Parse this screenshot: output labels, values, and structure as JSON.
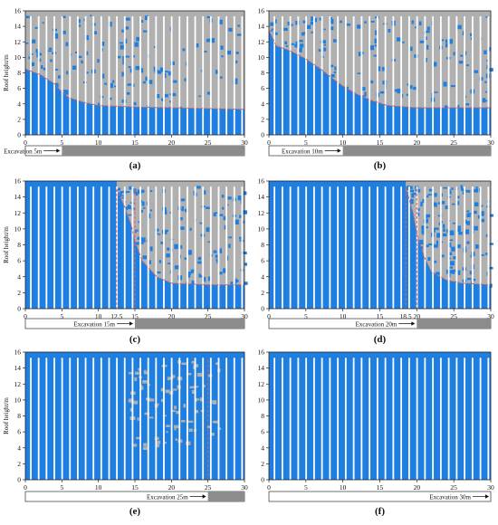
{
  "chart_data": [
    {
      "type": "bar",
      "panel": "(a)",
      "xlim": [
        0,
        30
      ],
      "ylim": [
        0,
        16
      ],
      "xticks": [
        0,
        5,
        10,
        15,
        20,
        25,
        30
      ],
      "yticks": [
        0,
        2,
        4,
        6,
        8,
        10,
        12,
        14,
        16
      ],
      "ylabel": "Roof height/m",
      "excavation_label": "Excavation 5m",
      "excavation_m": 5,
      "dashed_marks": [],
      "collapse_curve": {
        "x": [
          0,
          2,
          4,
          5,
          6,
          8,
          10,
          15,
          20,
          25,
          30
        ],
        "y": [
          8.5,
          7.8,
          6.6,
          5.5,
          4.8,
          4.2,
          3.8,
          3.6,
          3.5,
          3.4,
          3.3
        ]
      }
    },
    {
      "type": "bar",
      "panel": "(b)",
      "xlim": [
        0,
        30
      ],
      "ylim": [
        0,
        16
      ],
      "xticks": [
        0,
        5,
        10,
        15,
        20,
        25,
        30
      ],
      "yticks": [
        0,
        2,
        4,
        6,
        8,
        10,
        12,
        14,
        16
      ],
      "ylabel": "",
      "excavation_label": "Excavation 10m",
      "excavation_m": 10,
      "dashed_marks": [],
      "collapse_curve": {
        "x": [
          0,
          1,
          3,
          5,
          7,
          9,
          10,
          12,
          14,
          16,
          20,
          25,
          30
        ],
        "y": [
          13.5,
          11.5,
          10.8,
          9.8,
          8.5,
          7.0,
          6.3,
          5.2,
          4.4,
          3.8,
          3.5,
          3.5,
          3.5
        ]
      }
    },
    {
      "type": "bar",
      "panel": "(c)",
      "xlim": [
        0,
        30
      ],
      "ylim": [
        0,
        16
      ],
      "xticks": [
        0,
        5,
        10,
        15,
        20,
        25,
        30
      ],
      "yticks": [
        0,
        2,
        4,
        6,
        8,
        10,
        12,
        14,
        16
      ],
      "ylabel": "Roof height/m",
      "excavation_label": "Excavation 15m",
      "excavation_m": 15,
      "dashed_marks": [
        12.5,
        15
      ],
      "mark_label": "12.5",
      "collapse_curve": {
        "x": [
          12.5,
          13.5,
          14.5,
          15,
          16,
          18,
          20,
          25,
          30
        ],
        "y": [
          15,
          13,
          10.5,
          8.5,
          6,
          4,
          3.2,
          3.0,
          3.0
        ]
      }
    },
    {
      "type": "bar",
      "panel": "(d)",
      "xlim": [
        0,
        30
      ],
      "ylim": [
        0,
        16
      ],
      "xticks": [
        0,
        5,
        10,
        15,
        20,
        25,
        30
      ],
      "yticks": [
        0,
        2,
        4,
        6,
        8,
        10,
        12,
        14,
        16
      ],
      "ylabel": "",
      "excavation_label": "Excavation 20m",
      "excavation_m": 20,
      "dashed_marks": [
        18.5,
        20
      ],
      "mark_label": "18.5",
      "collapse_curve": {
        "x": [
          18.5,
          19.5,
          20,
          21,
          22,
          24,
          26,
          30
        ],
        "y": [
          15.2,
          12,
          9.5,
          6.5,
          4.6,
          3.6,
          3.2,
          3.0
        ]
      }
    },
    {
      "type": "bar",
      "panel": "(e)",
      "xlim": [
        0,
        30
      ],
      "ylim": [
        0,
        16
      ],
      "xticks": [
        0,
        5,
        10,
        15,
        20,
        25,
        30
      ],
      "yticks": [
        0,
        2,
        4,
        6,
        8,
        10,
        12,
        14,
        16
      ],
      "ylabel": "Roof height/m",
      "excavation_label": "Excavation 25m",
      "excavation_m": 25,
      "dashed_marks": [
        25
      ],
      "collapse_curve": null
    },
    {
      "type": "bar",
      "panel": "(f)",
      "xlim": [
        0,
        30
      ],
      "ylim": [
        0,
        16
      ],
      "xticks": [
        0,
        5,
        10,
        15,
        20,
        25,
        30
      ],
      "yticks": [
        0,
        2,
        4,
        6,
        8,
        10,
        12,
        14,
        16
      ],
      "ylabel": "",
      "excavation_label": "Excavation 30m",
      "excavation_m": 30,
      "dashed_marks": [],
      "collapse_curve": null
    }
  ],
  "colors": {
    "coal": "#1f7fe0",
    "goaf": "#b0b0b0",
    "curve": "#e06060",
    "excavated": "#8c8c8c"
  }
}
